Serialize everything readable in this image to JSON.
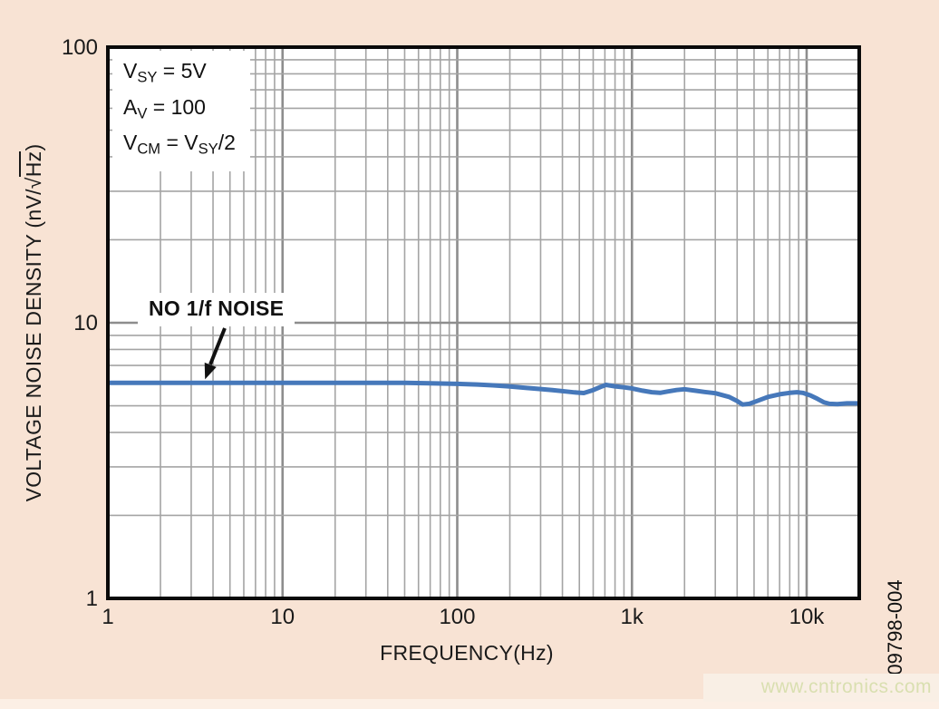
{
  "page": {
    "figure_number": "09798-004",
    "watermark": {
      "text": "www.cntronics.com"
    }
  },
  "colors": {
    "background": "#f8e3d4",
    "plot_background": "#ffffff",
    "grid_minor": "#a4a4a4",
    "grid_major": "#8d8d8d",
    "border": "#0a0a0a",
    "line": "#4678ba",
    "text": "#111111",
    "watermark_text": "#d9dfb0",
    "watermark_bg": "#f9efe5"
  },
  "chart_data": {
    "type": "line",
    "title": "",
    "xlabel": "FREQUENCY(Hz)",
    "ylabel": "VOLTAGE NOISE DENSITY (nV/√Hz̅)",
    "ylabel_segments": [
      {
        "t": "VOLTAGE NOISE DENSITY (nV/√"
      },
      {
        "overline": "Hz"
      },
      {
        "t": ")"
      }
    ],
    "x_scale": "log",
    "y_scale": "log",
    "xlim": [
      1,
      20000
    ],
    "ylim": [
      1,
      100
    ],
    "grid": "major-and-minor",
    "legend": "none",
    "x_ticks": [
      {
        "value": 1,
        "label": "1"
      },
      {
        "value": 10,
        "label": "10"
      },
      {
        "value": 100,
        "label": "100"
      },
      {
        "value": 1000,
        "label": "1k"
      },
      {
        "value": 10000,
        "label": "10k"
      }
    ],
    "y_ticks": [
      {
        "value": 1,
        "label": "1"
      },
      {
        "value": 10,
        "label": "10"
      },
      {
        "value": 100,
        "label": "100"
      }
    ],
    "series": [
      {
        "name": "voltage-noise-density",
        "color": "#4678ba",
        "points": [
          [
            1,
            6.05
          ],
          [
            2,
            6.05
          ],
          [
            3,
            6.05
          ],
          [
            5,
            6.05
          ],
          [
            7,
            6.05
          ],
          [
            10,
            6.05
          ],
          [
            15,
            6.05
          ],
          [
            20,
            6.05
          ],
          [
            30,
            6.05
          ],
          [
            50,
            6.05
          ],
          [
            70,
            6.03
          ],
          [
            100,
            6.0
          ],
          [
            130,
            5.97
          ],
          [
            160,
            5.93
          ],
          [
            200,
            5.87
          ],
          [
            250,
            5.8
          ],
          [
            300,
            5.75
          ],
          [
            350,
            5.7
          ],
          [
            420,
            5.63
          ],
          [
            470,
            5.59
          ],
          [
            530,
            5.56
          ],
          [
            600,
            5.7
          ],
          [
            660,
            5.85
          ],
          [
            710,
            5.95
          ],
          [
            800,
            5.88
          ],
          [
            900,
            5.83
          ],
          [
            1000,
            5.78
          ],
          [
            1150,
            5.67
          ],
          [
            1300,
            5.6
          ],
          [
            1450,
            5.57
          ],
          [
            1600,
            5.63
          ],
          [
            1800,
            5.7
          ],
          [
            2000,
            5.74
          ],
          [
            2300,
            5.67
          ],
          [
            2600,
            5.61
          ],
          [
            3000,
            5.55
          ],
          [
            3600,
            5.38
          ],
          [
            4000,
            5.2
          ],
          [
            4300,
            5.05
          ],
          [
            4700,
            5.08
          ],
          [
            5200,
            5.2
          ],
          [
            6000,
            5.38
          ],
          [
            7000,
            5.5
          ],
          [
            8000,
            5.57
          ],
          [
            8800,
            5.6
          ],
          [
            9500,
            5.57
          ],
          [
            10500,
            5.45
          ],
          [
            11500,
            5.3
          ],
          [
            12500,
            5.15
          ],
          [
            13500,
            5.08
          ],
          [
            15000,
            5.07
          ],
          [
            17000,
            5.1
          ],
          [
            20000,
            5.1
          ]
        ]
      }
    ],
    "annotations": {
      "conditions": [
        [
          {
            "t": "V"
          },
          {
            "sub": "SY"
          },
          {
            "t": " = 5V"
          }
        ],
        [
          {
            "t": "A"
          },
          {
            "sub": "V"
          },
          {
            "t": " = 100"
          }
        ],
        [
          {
            "t": "V"
          },
          {
            "sub": "CM"
          },
          {
            "t": " = V"
          },
          {
            "sub": "SY"
          },
          {
            "t": "/2"
          }
        ]
      ],
      "callout": {
        "text": "NO 1/f NOISE",
        "arrow_points_to_hz": 3.6
      }
    }
  }
}
